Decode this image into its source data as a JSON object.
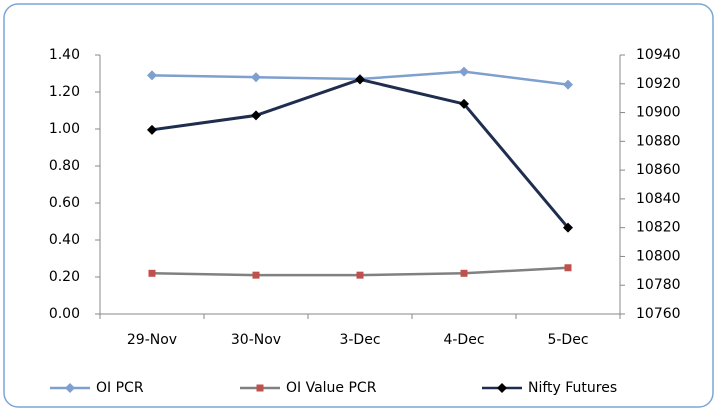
{
  "chart_data": {
    "type": "line",
    "categories": [
      "29-Nov",
      "30-Nov",
      "3-Dec",
      "4-Dec",
      "5-Dec"
    ],
    "series": [
      {
        "name": "OI PCR",
        "color": "#7f9fcf",
        "marker": "diamond",
        "values": [
          1.29,
          1.28,
          1.27,
          1.31,
          1.24
        ]
      },
      {
        "name": "OI Value PCR",
        "color": "#808080",
        "marker": "square",
        "marker_color": "#c0504d",
        "values": [
          0.22,
          0.21,
          0.21,
          0.22,
          0.25
        ]
      },
      {
        "name": "Nifty Futures",
        "color": "#1f2d4f",
        "marker": "diamond",
        "marker_color": "#000000",
        "axis": "y2",
        "values": [
          10888,
          10898,
          10923,
          10906,
          10820
        ]
      }
    ],
    "ylim": [
      0,
      1.4
    ],
    "yticks": [
      {
        "value": 0,
        "label": "0.00"
      },
      {
        "value": 0.2,
        "label": "0.20"
      },
      {
        "value": 0.4,
        "label": "0.40"
      },
      {
        "value": 0.6,
        "label": "0.60"
      },
      {
        "value": 0.8,
        "label": "0.80"
      },
      {
        "value": 1,
        "label": "1.00"
      },
      {
        "value": 1.2,
        "label": "1.20"
      },
      {
        "value": 1.4,
        "label": "1.40"
      }
    ],
    "y2lim": [
      10760,
      10940
    ],
    "y2ticks": [
      10760,
      10780,
      10800,
      10820,
      10840,
      10860,
      10880,
      10900,
      10920,
      10940
    ],
    "legend": "bottom"
  }
}
